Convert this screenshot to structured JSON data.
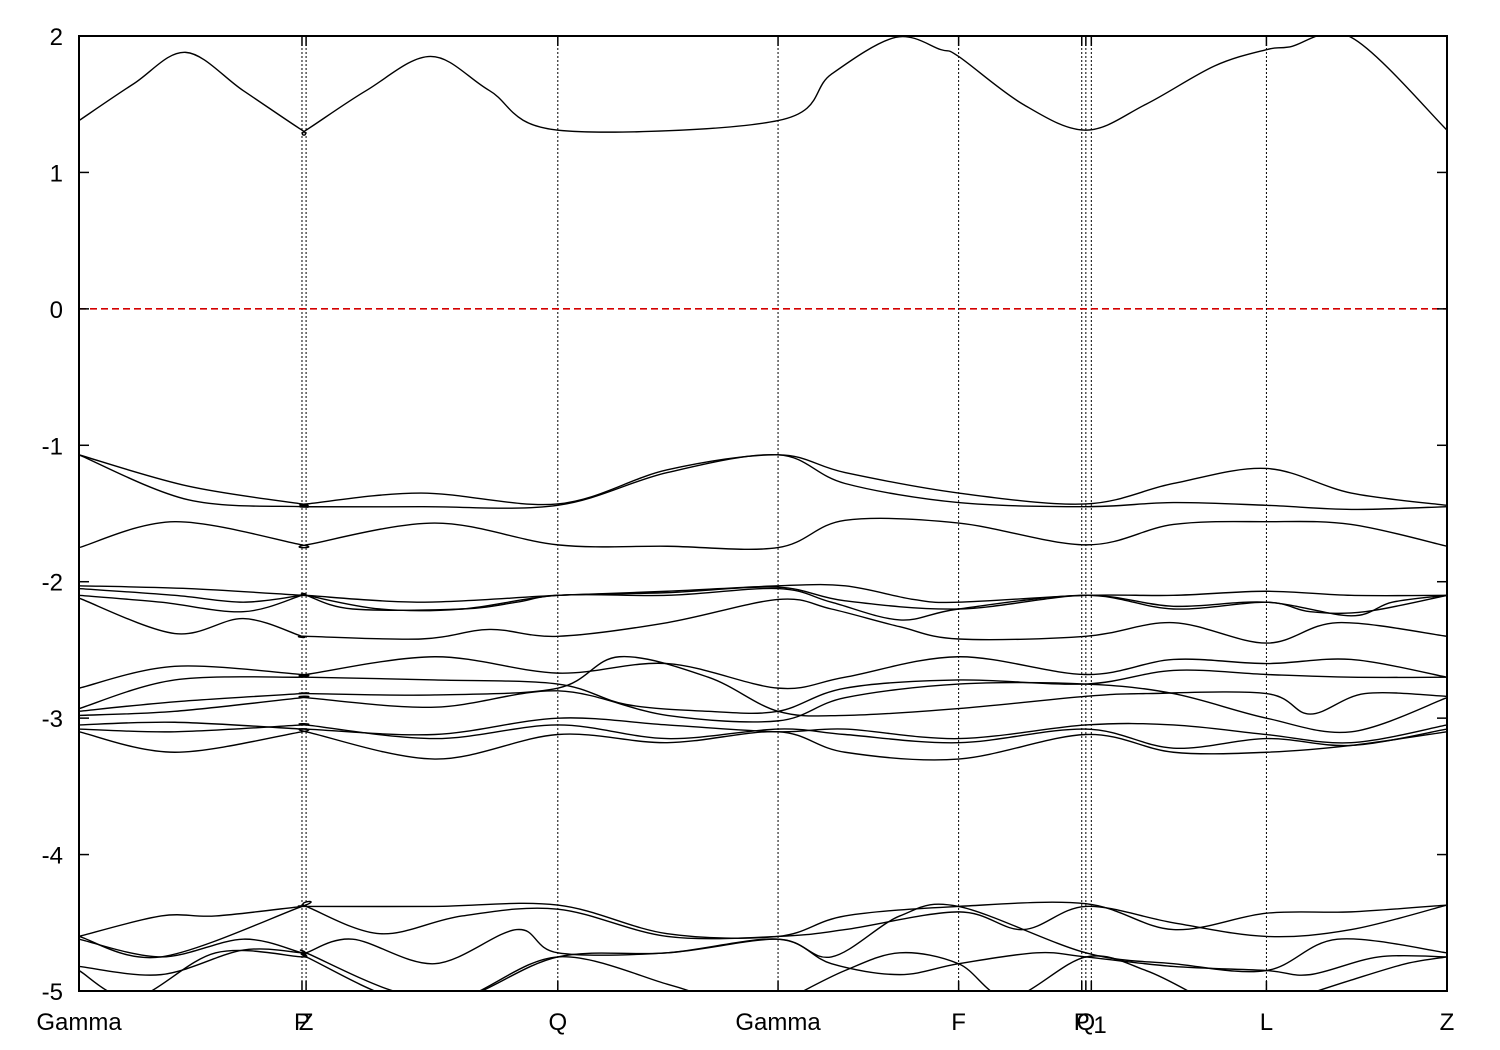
{
  "chart_data": {
    "type": "line",
    "title": "",
    "xlabel": "",
    "ylabel": "",
    "ylim": [
      -5,
      2
    ],
    "xlim": [
      0,
      10
    ],
    "yticks": [
      -5,
      -4,
      -3,
      -2,
      -1,
      0,
      1,
      2
    ],
    "grid": false,
    "legend": "none",
    "fermi_level": {
      "y": 0,
      "color": "#d40000",
      "style": "dashed"
    },
    "kpoints": [
      {
        "label": "Gamma",
        "x": 0.0
      },
      {
        "label": "P",
        "x": 1.63
      },
      {
        "label": "Z",
        "x": 1.66
      },
      {
        "label": "Q",
        "x": 3.5
      },
      {
        "label": "Gamma",
        "x": 5.11
      },
      {
        "label": "F",
        "x": 6.43
      },
      {
        "label": "P",
        "x": 7.33
      },
      {
        "label": "Q",
        "x": 7.36
      },
      {
        "label": "1",
        "x": 7.4
      },
      {
        "label": "L",
        "x": 8.68
      },
      {
        "label": "Z",
        "x": 10.0
      }
    ],
    "series": [
      {
        "x": [
          0,
          0.4,
          0.78,
          1.2,
          1.63,
          1.66,
          2.1,
          2.57,
          3.0,
          3.5,
          5.11,
          5.5,
          5.97,
          6.3,
          6.43,
          6.9,
          7.36,
          7.8,
          8.3,
          8.68,
          8.85,
          9.3,
          10.0
        ],
        "y": [
          1.38,
          1.65,
          1.88,
          1.6,
          1.31,
          1.31,
          1.6,
          1.85,
          1.6,
          1.31,
          1.38,
          1.72,
          1.99,
          1.9,
          1.85,
          1.5,
          1.31,
          1.5,
          1.78,
          1.9,
          1.92,
          1.99,
          1.31
        ]
      },
      {
        "x": [
          0,
          0.8,
          1.63,
          1.66,
          2.5,
          3.5,
          4.3,
          5.11,
          5.6,
          6.43,
          7.36,
          8.0,
          8.68,
          9.3,
          10.0
        ],
        "y": [
          -1.07,
          -1.3,
          -1.43,
          -1.43,
          -1.35,
          -1.43,
          -1.18,
          -1.07,
          -1.2,
          -1.35,
          -1.43,
          -1.28,
          -1.17,
          -1.35,
          -1.44
        ]
      },
      {
        "x": [
          0,
          0.8,
          1.63,
          1.66,
          2.5,
          3.5,
          4.3,
          5.11,
          5.6,
          6.43,
          7.36,
          8.0,
          8.68,
          9.3,
          10.0
        ],
        "y": [
          -1.07,
          -1.4,
          -1.45,
          -1.45,
          -1.45,
          -1.44,
          -1.2,
          -1.07,
          -1.28,
          -1.42,
          -1.45,
          -1.42,
          -1.44,
          -1.47,
          -1.45
        ]
      },
      {
        "x": [
          0,
          0.7,
          1.63,
          1.66,
          2.6,
          3.5,
          4.3,
          5.11,
          5.6,
          6.43,
          7.36,
          8.0,
          8.68,
          9.3,
          10.0
        ],
        "y": [
          -1.75,
          -1.56,
          -1.73,
          -1.73,
          -1.57,
          -1.73,
          -1.74,
          -1.75,
          -1.55,
          -1.57,
          -1.73,
          -1.58,
          -1.56,
          -1.58,
          -1.74
        ]
      },
      {
        "x": [
          0,
          0.8,
          1.63,
          1.66,
          2.5,
          3.5,
          4.3,
          5.11,
          5.6,
          6.1,
          6.43,
          7.36,
          8.0,
          8.68,
          9.3,
          10.0
        ],
        "y": [
          -2.03,
          -2.05,
          -2.1,
          -2.1,
          -2.15,
          -2.1,
          -2.07,
          -2.03,
          -2.03,
          -2.13,
          -2.15,
          -2.1,
          -2.1,
          -2.07,
          -2.1,
          -2.1
        ]
      },
      {
        "x": [
          0,
          0.7,
          1.2,
          1.63,
          1.66,
          2.0,
          2.8,
          3.2,
          3.5,
          4.3,
          5.11,
          5.6,
          6.43,
          7.36,
          8.0,
          8.68,
          9.3,
          9.6,
          10.0
        ],
        "y": [
          -2.05,
          -2.1,
          -2.15,
          -2.1,
          -2.1,
          -2.2,
          -2.2,
          -2.15,
          -2.1,
          -2.08,
          -2.04,
          -2.14,
          -2.2,
          -2.1,
          -2.18,
          -2.15,
          -2.25,
          -2.15,
          -2.1
        ]
      },
      {
        "x": [
          0,
          0.6,
          1.2,
          1.63,
          1.66,
          2.2,
          2.8,
          3.5,
          4.3,
          5.11,
          5.5,
          6.0,
          6.43,
          7.36,
          8.0,
          8.68,
          9.0,
          9.4,
          10.0
        ],
        "y": [
          -2.1,
          -2.15,
          -2.22,
          -2.1,
          -2.1,
          -2.2,
          -2.2,
          -2.1,
          -2.1,
          -2.05,
          -2.15,
          -2.28,
          -2.2,
          -2.1,
          -2.2,
          -2.15,
          -2.22,
          -2.22,
          -2.1
        ]
      },
      {
        "x": [
          0,
          0.7,
          1.2,
          1.63,
          1.66,
          2.5,
          3.0,
          3.5,
          4.3,
          5.11,
          5.5,
          6.0,
          6.43,
          7.36,
          8.0,
          8.68,
          9.2,
          10.0
        ],
        "y": [
          -2.12,
          -2.38,
          -2.27,
          -2.4,
          -2.4,
          -2.42,
          -2.35,
          -2.4,
          -2.3,
          -2.13,
          -2.2,
          -2.33,
          -2.42,
          -2.4,
          -2.3,
          -2.45,
          -2.3,
          -2.4
        ]
      },
      {
        "x": [
          0,
          0.7,
          1.63,
          1.66,
          2.6,
          3.5,
          4.3,
          5.11,
          5.6,
          6.43,
          7.36,
          8.0,
          8.68,
          9.3,
          10.0
        ],
        "y": [
          -2.78,
          -2.62,
          -2.68,
          -2.68,
          -2.55,
          -2.67,
          -2.6,
          -2.78,
          -2.7,
          -2.55,
          -2.68,
          -2.57,
          -2.6,
          -2.57,
          -2.7
        ]
      },
      {
        "x": [
          0,
          0.7,
          1.63,
          1.66,
          2.6,
          3.5,
          4.0,
          4.6,
          5.11,
          5.6,
          6.43,
          7.36,
          8.0,
          8.68,
          9.3,
          10.0
        ],
        "y": [
          -2.93,
          -2.72,
          -2.7,
          -2.7,
          -2.72,
          -2.75,
          -2.9,
          -2.95,
          -2.95,
          -2.78,
          -2.72,
          -2.75,
          -2.65,
          -2.68,
          -2.7,
          -2.7
        ]
      },
      {
        "x": [
          0,
          0.7,
          1.63,
          1.66,
          2.6,
          3.5,
          3.95,
          4.6,
          5.11,
          5.6,
          6.43,
          7.36,
          7.8,
          8.68,
          9.0,
          9.4,
          10.0
        ],
        "y": [
          -2.95,
          -2.88,
          -2.82,
          -2.82,
          -2.83,
          -2.78,
          -2.55,
          -2.7,
          -2.95,
          -2.98,
          -2.93,
          -2.84,
          -2.82,
          -2.82,
          -2.97,
          -2.82,
          -2.84
        ]
      },
      {
        "x": [
          0,
          0.7,
          1.63,
          1.66,
          2.6,
          3.5,
          4.3,
          5.11,
          5.6,
          6.43,
          7.36,
          8.0,
          8.68,
          9.3,
          10.0
        ],
        "y": [
          -2.98,
          -2.95,
          -2.85,
          -2.85,
          -2.92,
          -2.8,
          -2.98,
          -3.02,
          -2.85,
          -2.75,
          -2.75,
          -2.82,
          -3.0,
          -3.1,
          -2.85
        ]
      },
      {
        "x": [
          0,
          0.7,
          1.63,
          1.66,
          2.6,
          3.5,
          4.3,
          5.11,
          5.6,
          6.43,
          7.36,
          8.0,
          8.68,
          9.3,
          10.0
        ],
        "y": [
          -3.05,
          -3.03,
          -3.08,
          -3.08,
          -3.12,
          -3.0,
          -3.05,
          -3.1,
          -3.08,
          -3.15,
          -3.05,
          -3.05,
          -3.12,
          -3.18,
          -3.05
        ]
      },
      {
        "x": [
          0,
          0.7,
          1.63,
          1.66,
          2.6,
          3.5,
          4.3,
          5.11,
          5.6,
          6.43,
          7.36,
          8.0,
          8.68,
          9.3,
          10.0
        ],
        "y": [
          -3.08,
          -3.1,
          -3.05,
          -3.05,
          -3.15,
          -3.05,
          -3.15,
          -3.08,
          -3.12,
          -3.18,
          -3.08,
          -3.22,
          -3.15,
          -3.2,
          -3.08
        ]
      },
      {
        "x": [
          0,
          0.7,
          1.63,
          1.66,
          2.6,
          3.5,
          4.3,
          5.11,
          5.6,
          6.43,
          7.36,
          8.0,
          8.68,
          9.3,
          10.0
        ],
        "y": [
          -3.1,
          -3.25,
          -3.1,
          -3.1,
          -3.3,
          -3.12,
          -3.18,
          -3.1,
          -3.25,
          -3.3,
          -3.12,
          -3.25,
          -3.25,
          -3.2,
          -3.1
        ]
      },
      {
        "x": [
          0,
          0.6,
          1.0,
          1.63,
          1.66,
          2.6,
          3.5,
          4.3,
          5.11,
          5.6,
          6.43,
          7.36,
          8.0,
          8.68,
          9.3,
          10.0
        ],
        "y": [
          -4.6,
          -4.45,
          -4.45,
          -4.38,
          -4.38,
          -4.38,
          -4.37,
          -4.58,
          -4.6,
          -4.45,
          -4.38,
          -4.36,
          -4.55,
          -4.43,
          -4.42,
          -4.37
        ]
      },
      {
        "x": [
          0,
          0.6,
          1.63,
          1.66,
          2.2,
          2.8,
          3.5,
          4.3,
          5.11,
          5.6,
          6.43,
          6.9,
          7.36,
          8.0,
          8.68,
          9.3,
          10.0
        ],
        "y": [
          -4.6,
          -4.75,
          -4.38,
          -4.38,
          -4.58,
          -4.45,
          -4.4,
          -4.6,
          -4.6,
          -4.55,
          -4.42,
          -4.55,
          -4.38,
          -4.5,
          -4.6,
          -4.55,
          -4.37
        ]
      },
      {
        "x": [
          0,
          0.6,
          1.2,
          1.63,
          1.66,
          2.0,
          2.6,
          3.2,
          3.5,
          4.3,
          5.11,
          5.5,
          6.0,
          6.43,
          7.36,
          8.0,
          8.68,
          9.2,
          10.0
        ],
        "y": [
          -4.62,
          -4.75,
          -4.62,
          -4.72,
          -4.72,
          -4.62,
          -4.8,
          -4.55,
          -4.72,
          -4.72,
          -4.62,
          -4.75,
          -4.45,
          -4.38,
          -4.72,
          -4.8,
          -4.85,
          -4.62,
          -4.72
        ]
      },
      {
        "x": [
          0,
          0.6,
          1.2,
          1.63,
          1.66,
          2.3,
          2.8,
          3.5,
          4.3,
          5.11,
          5.5,
          6.0,
          6.43,
          7.0,
          7.36,
          8.0,
          8.68,
          9.0,
          9.5,
          10.0
        ],
        "y": [
          -4.82,
          -4.88,
          -4.7,
          -4.72,
          -4.72,
          -5.0,
          -5.05,
          -4.75,
          -4.72,
          -4.62,
          -4.8,
          -4.88,
          -4.8,
          -4.72,
          -4.75,
          -4.82,
          -4.85,
          -4.88,
          -4.75,
          -4.75
        ]
      },
      {
        "x": [
          0,
          0.4,
          1.0,
          1.63,
          1.66,
          2.3,
          2.8,
          3.5,
          4.3,
          4.6
        ],
        "y": [
          -4.85,
          -5.05,
          -4.72,
          -4.75,
          -4.75,
          -5.05,
          -5.05,
          -4.75,
          -4.95,
          -5.05
        ]
      },
      {
        "x": [
          5.2,
          5.6,
          6.0,
          6.43,
          6.8,
          7.36,
          7.8,
          8.2
        ],
        "y": [
          -5.05,
          -4.85,
          -4.72,
          -4.8,
          -5.05,
          -4.75,
          -4.85,
          -5.05
        ]
      },
      {
        "x": [
          8.9,
          9.3,
          9.7,
          10.0
        ],
        "y": [
          -5.05,
          -4.92,
          -4.8,
          -4.75
        ]
      }
    ]
  }
}
